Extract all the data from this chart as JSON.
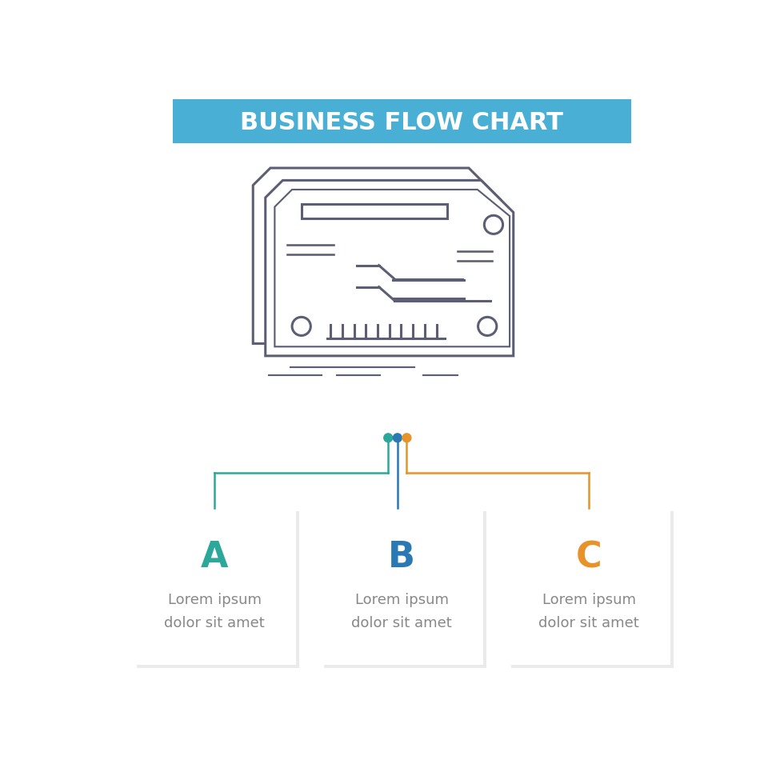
{
  "title": "BUSINESS FLOW CHART",
  "title_bg_color": "#4AAFD5",
  "title_text_color": "#FFFFFF",
  "bg_color": "#FFFFFF",
  "icon_color": "#5C5F73",
  "flow_colors": [
    "#2BA899",
    "#2979B5",
    "#E8922A"
  ],
  "labels": [
    "A",
    "B",
    "C"
  ],
  "label_colors": [
    "#2BA899",
    "#2979B5",
    "#E8922A"
  ],
  "body_text": "Lorem ipsum\ndolor sit amet",
  "body_text_color": "#888888",
  "label_fontsize": 32,
  "body_fontsize": 13,
  "title_fontsize": 22
}
